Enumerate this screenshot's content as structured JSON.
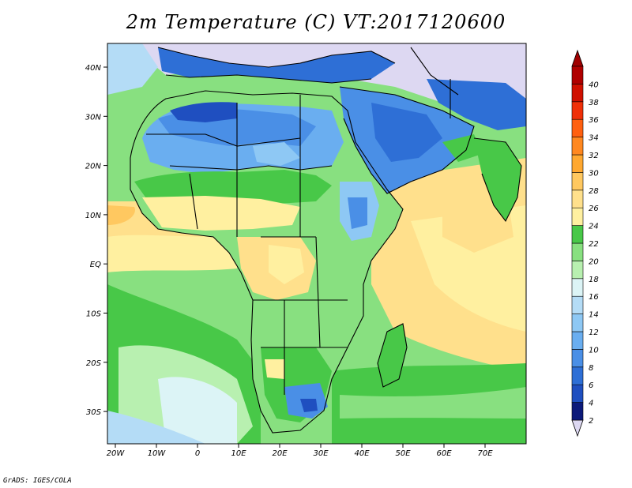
{
  "title": "2m Temperature (C) VT:2017120600",
  "credit": "GrADS: IGES/COLA",
  "map": {
    "lon_ticks": [
      "20W",
      "10W",
      "0",
      "10E",
      "20E",
      "30E",
      "40E",
      "50E",
      "60E",
      "70E"
    ],
    "lat_ticks": [
      "40N",
      "30N",
      "20N",
      "10N",
      "EQ",
      "10S",
      "20S",
      "30S"
    ]
  },
  "colorbar": {
    "labels": [
      "2",
      "4",
      "6",
      "8",
      "10",
      "12",
      "14",
      "16",
      "18",
      "20",
      "22",
      "24",
      "26",
      "28",
      "30",
      "32",
      "34",
      "36",
      "38",
      "40"
    ],
    "colors": [
      "#0c1a7a",
      "#1f4fc0",
      "#2e6fd6",
      "#4a8fe6",
      "#6aaef0",
      "#8ec8f4",
      "#b4dcf6",
      "#dcf4f6",
      "#b8f0b0",
      "#88e080",
      "#48c848",
      "#fff0a0",
      "#ffe08c",
      "#ffc860",
      "#ffa830",
      "#ff8820",
      "#ff6010",
      "#f03008",
      "#d01000",
      "#b00000"
    ],
    "below_color": "#ddd8f2",
    "above_color": "#a00000"
  }
}
